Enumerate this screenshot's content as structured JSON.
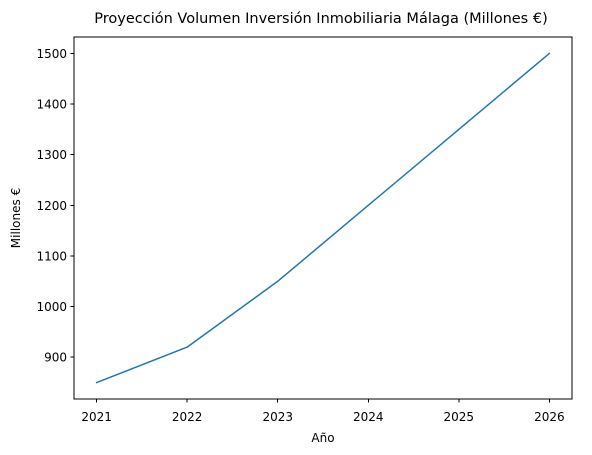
{
  "chart_data": {
    "type": "line",
    "title": "Proyección Volumen Inversión Inmobiliaria Málaga (Millones €)",
    "xlabel": "Año",
    "ylabel": "Millones €",
    "x": [
      2021,
      2022,
      2023,
      2024,
      2025,
      2026
    ],
    "series": [
      {
        "values": [
          850,
          920,
          1050,
          1200,
          1350,
          1500
        ],
        "color": "#1f77b4"
      }
    ],
    "xlim": [
      2020.75,
      2026.25
    ],
    "ylim": [
      817.5,
      1532.5
    ],
    "xticks": [
      "2021",
      "2022",
      "2023",
      "2024",
      "2025",
      "2026"
    ],
    "yticks": [
      "900",
      "1000",
      "1100",
      "1200",
      "1300",
      "1400",
      "1500"
    ],
    "grid": false,
    "legend": "none"
  }
}
